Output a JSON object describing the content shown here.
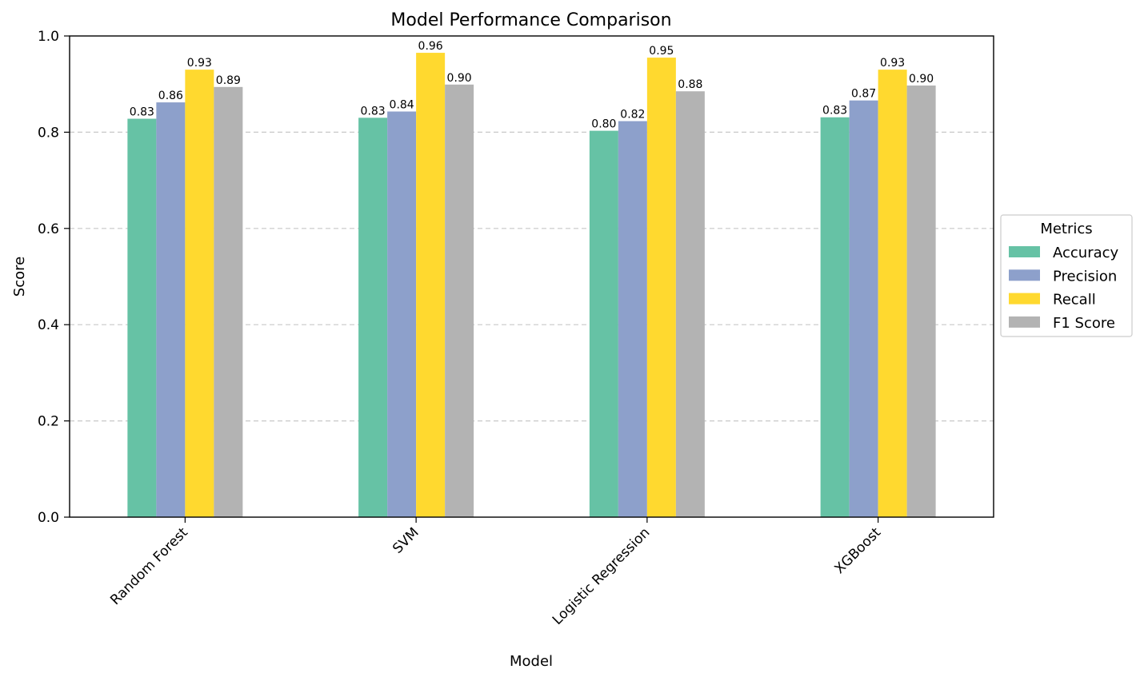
{
  "chart_data": {
    "type": "bar",
    "title": "Model Performance Comparison",
    "xlabel": "Model",
    "ylabel": "Score",
    "ylim": [
      0,
      1.0
    ],
    "yticks": [
      "0.0",
      "0.2",
      "0.4",
      "0.6",
      "0.8",
      "1.0"
    ],
    "categories": [
      "Random Forest",
      "SVM",
      "Logistic Regression",
      "XGBoost"
    ],
    "grid": "y-dashed",
    "legend": {
      "title": "Metrics",
      "placement": "right-outside"
    },
    "series": [
      {
        "name": "Accuracy",
        "color": "#66c2a5",
        "values": [
          0.828,
          0.83,
          0.803,
          0.831
        ],
        "labels": [
          "0.83",
          "0.83",
          "0.80",
          "0.83"
        ]
      },
      {
        "name": "Precision",
        "color": "#8da0cb",
        "values": [
          0.862,
          0.843,
          0.823,
          0.866
        ],
        "labels": [
          "0.86",
          "0.84",
          "0.82",
          "0.87"
        ]
      },
      {
        "name": "Recall",
        "color": "#ffd92f",
        "values": [
          0.93,
          0.965,
          0.955,
          0.93
        ],
        "labels": [
          "0.93",
          "0.96",
          "0.95",
          "0.93"
        ]
      },
      {
        "name": "F1 Score",
        "color": "#b3b3b3",
        "values": [
          0.894,
          0.899,
          0.885,
          0.897
        ],
        "labels": [
          "0.89",
          "0.90",
          "0.88",
          "0.90"
        ]
      }
    ]
  }
}
